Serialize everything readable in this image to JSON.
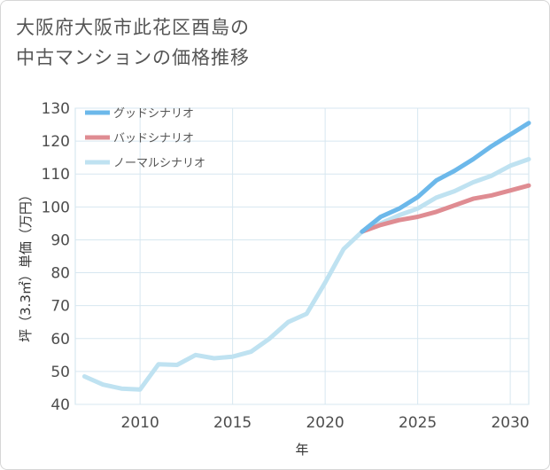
{
  "title_lines": [
    "大阪府大阪市此花区酉島の",
    "中古マンションの価格推移"
  ],
  "chart_data": {
    "type": "line",
    "title": "大阪府大阪市此花区酉島の中古マンションの価格推移",
    "xlabel": "年",
    "ylabel": "坪（3.3㎡）単価（万円）",
    "xlim": [
      2006.5,
      2031
    ],
    "ylim": [
      40,
      130
    ],
    "x_ticks": [
      2010,
      2015,
      2020,
      2025,
      2030
    ],
    "y_ticks": [
      40,
      50,
      60,
      70,
      80,
      90,
      100,
      110,
      120,
      130
    ],
    "grid": true,
    "legend_position": "top-left",
    "series": [
      {
        "name": "グッドシナリオ",
        "color": "#6cb8ea",
        "x": [
          2022,
          2023,
          2024,
          2025,
          2026,
          2027,
          2028,
          2029,
          2030,
          2031
        ],
        "y": [
          92.5,
          97,
          99.5,
          103,
          108,
          111,
          114.5,
          118.5,
          122,
          125.5
        ]
      },
      {
        "name": "バッドシナリオ",
        "color": "#df8c92",
        "x": [
          2022,
          2023,
          2024,
          2025,
          2026,
          2027,
          2028,
          2029,
          2030,
          2031
        ],
        "y": [
          92.5,
          94.5,
          96,
          97,
          98.5,
          100.5,
          102.5,
          103.5,
          105,
          106.5
        ]
      },
      {
        "name": "ノーマルシナリオ",
        "color": "#bfe2f1",
        "x": [
          2007,
          2008,
          2009,
          2010,
          2011,
          2012,
          2013,
          2014,
          2015,
          2016,
          2017,
          2018,
          2019,
          2020,
          2021,
          2022,
          2023,
          2024,
          2025,
          2026,
          2027,
          2028,
          2029,
          2030,
          2031
        ],
        "y": [
          48.5,
          46,
          44.8,
          44.5,
          52.2,
          52,
          55,
          54,
          54.5,
          56,
          60,
          65,
          67.5,
          77,
          87.2,
          92.5,
          95,
          97.5,
          99.5,
          102.8,
          104.8,
          107.5,
          109.5,
          112.5,
          114.5
        ]
      }
    ]
  }
}
